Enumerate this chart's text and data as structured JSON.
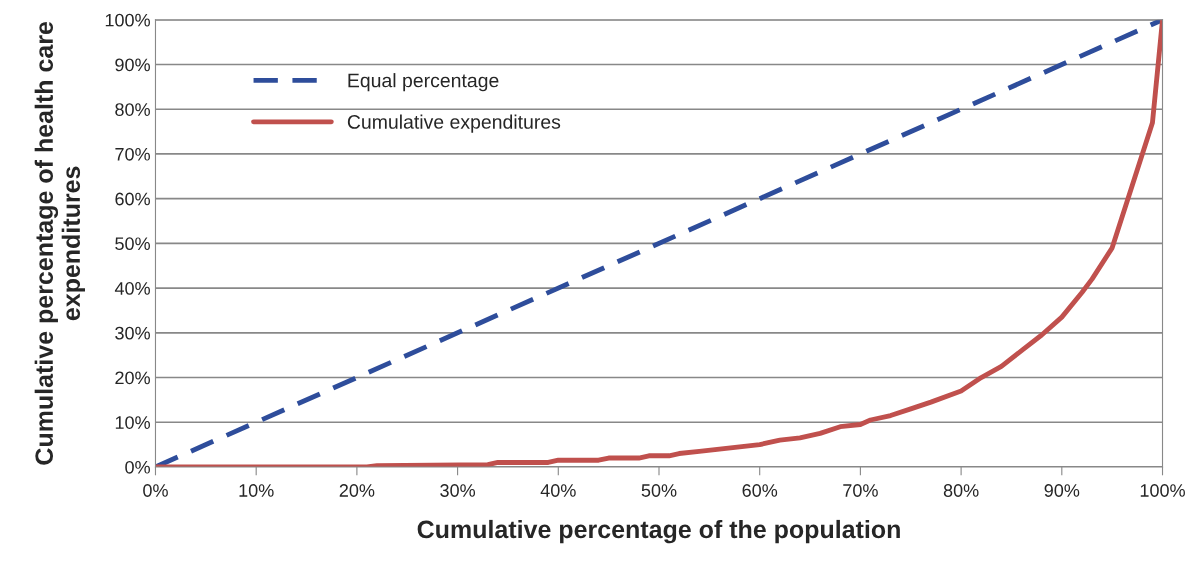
{
  "chart_data": {
    "type": "line",
    "xlabel": "Cumulative percentage of the population",
    "ylabel": "Cumulative percentage of health care expenditures",
    "x": [
      0,
      5,
      10,
      15,
      20,
      21,
      22,
      33,
      34,
      39,
      40,
      44,
      45,
      48,
      49,
      51,
      52,
      54,
      56,
      58,
      60,
      62,
      64,
      66,
      68,
      70,
      71,
      73,
      75,
      77,
      80,
      82,
      84,
      86,
      88,
      90,
      92,
      93,
      95,
      97,
      98,
      99,
      100
    ],
    "series": [
      {
        "name": "Equal percentage",
        "color": "#2e4d9b",
        "line_style": "dashed",
        "x": [
          0,
          100
        ],
        "values": [
          0,
          100
        ]
      },
      {
        "name": "Cumulative expenditures",
        "color": "#c0504d",
        "line_style": "solid",
        "values": [
          0,
          0,
          0,
          0,
          0,
          0,
          0.3,
          0.5,
          1,
          1,
          1.5,
          1.5,
          2,
          2,
          2.5,
          2.5,
          3,
          3.5,
          4,
          4.5,
          5,
          6,
          6.5,
          7.5,
          9,
          9.5,
          10.5,
          11.5,
          13,
          14.5,
          17,
          20,
          22.5,
          26,
          29.5,
          33.5,
          39,
          42,
          49,
          63,
          70,
          77,
          100
        ]
      }
    ],
    "xlim": [
      0,
      100
    ],
    "ylim": [
      0,
      100
    ],
    "xticks": [
      {
        "value": 0,
        "label": "0%"
      },
      {
        "value": 10,
        "label": "10%"
      },
      {
        "value": 20,
        "label": "20%"
      },
      {
        "value": 30,
        "label": "30%"
      },
      {
        "value": 40,
        "label": "40%"
      },
      {
        "value": 50,
        "label": "50%"
      },
      {
        "value": 60,
        "label": "60%"
      },
      {
        "value": 70,
        "label": "70%"
      },
      {
        "value": 80,
        "label": "80%"
      },
      {
        "value": 90,
        "label": "90%"
      },
      {
        "value": 100,
        "label": "100%"
      }
    ],
    "yticks": [
      {
        "value": 0,
        "label": "0%"
      },
      {
        "value": 10,
        "label": "10%"
      },
      {
        "value": 20,
        "label": "20%"
      },
      {
        "value": 30,
        "label": "30%"
      },
      {
        "value": 40,
        "label": "40%"
      },
      {
        "value": 50,
        "label": "50%"
      },
      {
        "value": 60,
        "label": "60%"
      },
      {
        "value": 70,
        "label": "70%"
      },
      {
        "value": 80,
        "label": "80%"
      },
      {
        "value": 90,
        "label": "90%"
      },
      {
        "value": 100,
        "label": "100%"
      }
    ],
    "grid": "y",
    "legend": "top left"
  }
}
